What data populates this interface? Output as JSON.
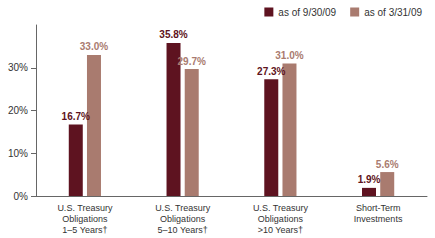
{
  "chart_data": {
    "type": "bar",
    "categories": [
      "U.S. Treasury\nObligations\n1–5 Years†",
      "U.S. Treasury\nObligations\n5–10 Years†",
      "U.S. Treasury\nObligations\n>10 Years†",
      "Short-Term\nInvestments"
    ],
    "series": [
      {
        "name": "as of 9/30/09",
        "color": "#5e1320",
        "values": [
          16.7,
          35.8,
          27.3,
          1.9
        ],
        "value_labels": [
          "16.7%",
          "35.8%",
          "27.3%",
          "1.9%"
        ]
      },
      {
        "name": "as of 3/31/09",
        "color": "#a97b6f",
        "values": [
          33.0,
          29.7,
          31.0,
          5.6
        ],
        "value_labels": [
          "33.0%",
          "29.7%",
          "31.0%",
          "5.6%"
        ]
      }
    ],
    "ylim": [
      0,
      40
    ],
    "yticks": [
      {
        "value": 0,
        "label": "0%"
      },
      {
        "value": 10,
        "label": "10%"
      },
      {
        "value": 20,
        "label": "20%"
      },
      {
        "value": 30,
        "label": "30%"
      }
    ],
    "grid": false,
    "legend": "top-right",
    "data_labels": true
  }
}
